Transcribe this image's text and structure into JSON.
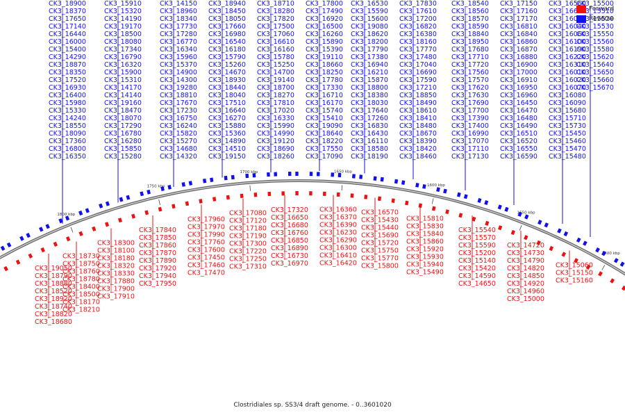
{
  "legend": {
    "forward": {
      "label": "Forward",
      "color": "#ee1111"
    },
    "reverse": {
      "label": "Reverse",
      "color": "#1111ee"
    }
  },
  "caption": "Clostridiales sp. SS3/4 draft genome. - 0..3601020",
  "ruler_ticks": [
    "1400 kbp",
    "1450 kbp",
    "1500 kbp",
    "1550 kbp",
    "1600 kbp",
    "1650 kbp",
    "1700 kbp",
    "1750 kbp",
    "1800 kbp",
    "1850 kbp",
    "1900 kbp",
    "1950 kbp"
  ],
  "reverse_genes": [
    "CK3_18900",
    "CK3_18370",
    "CK3_17650",
    "CK3_17140",
    "CK3_16440",
    "CK3_16000",
    "CK3_15400",
    "CK3_14290",
    "CK3_18870",
    "CK3_18350",
    "CK3_17520",
    "CK3_16930",
    "CK3_16400",
    "CK3_15980",
    "CK3_15330",
    "CK3_14240",
    "CK3_18550",
    "CK3_18090",
    "CK3_17360",
    "CK3_16800",
    "CK3_16350",
    "CK3_15910",
    "CK3_15320",
    "CK3_14190",
    "CK3_19170",
    "CK3_18500",
    "CK3_18080",
    "CK3_17340",
    "CK3_16790",
    "CK3_16320",
    "CK3_15900",
    "CK3_15310",
    "CK3_14170",
    "CK3_14140",
    "CK3_19160",
    "CK3_18470",
    "CK3_18070",
    "CK3_17290",
    "CK3_16780",
    "CK3_16280",
    "CK3_15850",
    "CK3_15280",
    "CK3_14150",
    "CK3_18960",
    "CK3_18340",
    "CK3_17730",
    "CK3_17280",
    "CK3_16770",
    "CK3_16340",
    "CK3_15960",
    "CK3_15370",
    "CK3_14900",
    "CK3_14300",
    "CK3_19280",
    "CK3_18810",
    "CK3_17670",
    "CK3_17230",
    "CK3_16750",
    "CK3_16240",
    "CK3_15820",
    "CK3_15270",
    "CK3_14680",
    "CK3_14320",
    "CK3_18940",
    "CK3_18450",
    "CK3_18050",
    "CK3_17660",
    "CK3_16980",
    "CK3_16540",
    "CK3_16180",
    "CK3_15790",
    "CK3_15260",
    "CK3_14670",
    "CK3_18930",
    "CK3_18440",
    "CK3_18040",
    "CK3_17510",
    "CK3_16640",
    "CK3_16270",
    "CK3_15880",
    "CK3_15360",
    "CK3_14890",
    "CK3_14510",
    "CK3_19150",
    "CK3_18710",
    "CK3_18280",
    "CK3_17820",
    "CK3_17500",
    "CK3_17060",
    "CK3_16610",
    "CK3_16160",
    "CK3_15780",
    "CK3_15250",
    "CK3_14700",
    "CK3_19140",
    "CK3_18700",
    "CK3_18270",
    "CK3_17810",
    "CK3_17020",
    "CK3_16330",
    "CK3_15990",
    "CK3_14990",
    "CK3_19120",
    "CK3_18690",
    "CK3_18260",
    "CK3_17800",
    "CK3_17490",
    "CK3_16920",
    "CK3_16500",
    "CK3_16260",
    "CK3_15890",
    "CK3_15390",
    "CK3_19110",
    "CK3_18660",
    "CK3_18250",
    "CK3_17780",
    "CK3_17330",
    "CK3_16710",
    "CK3_16170",
    "CK3_15740",
    "CK3_15410",
    "CK3_19090",
    "CK3_18640",
    "CK3_18220",
    "CK3_17550",
    "CK3_17090",
    "CK3_16530",
    "CK3_15590",
    "CK3_15600",
    "CK3_19080",
    "CK3_18620",
    "CK3_18200",
    "CK3_17790",
    "CK3_17380",
    "CK3_16940",
    "CK3_16210",
    "CK3_15870",
    "CK3_18800",
    "CK3_18380",
    "CK3_18030",
    "CK3_17640",
    "CK3_17260",
    "CK3_16830",
    "CK3_16430",
    "CK3_16110",
    "CK3_18580",
    "CK3_18190",
    "CK3_17830",
    "CK3_17610",
    "CK3_17200",
    "CK3_16820",
    "CK3_16380",
    "CK3_18160",
    "CK3_17770",
    "CK3_17480",
    "CK3_17040",
    "CK3_16690",
    "CK3_17590",
    "CK3_17210",
    "CK3_18850",
    "CK3_18490",
    "CK3_18610",
    "CK3_18410",
    "CK3_18480",
    "CK3_18670",
    "CK3_18390",
    "CK3_18420",
    "CK3_18460",
    "CK3_18540",
    "CK3_18560",
    "CK3_18570",
    "CK3_18590",
    "CK3_18840",
    "CK3_18950",
    "CK3_17680",
    "CK3_17710",
    "CK3_17720",
    "CK3_17560",
    "CK3_17570",
    "CK3_17620",
    "CK3_17630",
    "CK3_17690",
    "CK3_17700",
    "CK3_17390",
    "CK3_17400",
    "CK3_16990",
    "CK3_17070",
    "CK3_17110",
    "CK3_17130",
    "CK3_17150",
    "CK3_17160",
    "CK3_17170",
    "CK3_16810",
    "CK3_16840",
    "CK3_16860",
    "CK3_16870",
    "CK3_16880",
    "CK3_16900",
    "CK3_17000",
    "CK3_16910",
    "CK3_16950",
    "CK3_16960",
    "CK3_16450",
    "CK3_16470",
    "CK3_16480",
    "CK3_16490",
    "CK3_16510",
    "CK3_16520",
    "CK3_16550",
    "CK3_16590",
    "CK3_16560",
    "CK3_16600",
    "CK3_16030",
    "CK3_16040",
    "CK3_16060",
    "CK3_16100",
    "CK3_16190",
    "CK3_16220",
    "CK3_16310",
    "CK3_16010",
    "CK3_16020",
    "CK3_16070",
    "CK3_16080",
    "CK3_16090",
    "CK3_15680",
    "CK3_15710",
    "CK3_15730",
    "CK3_15450",
    "CK3_15460",
    "CK3_15470",
    "CK3_15480",
    "CK3_15500",
    "CK3_15510",
    "CK3_15520",
    "CK3_15530",
    "CK3_15550",
    "CK3_15560",
    "CK3_15580",
    "CK3_15620",
    "CK3_15640",
    "CK3_15650",
    "CK3_15660",
    "CK3_15670"
  ],
  "forward_genes": [
    "CK3_19050",
    "CK3_18790",
    "CK3_18880",
    "CK3_18520",
    "CK3_18920",
    "CK3_18740",
    "CK3_18820",
    "CK3_18680",
    "CK3_18730",
    "CK3_18750",
    "CK3_18760",
    "CK3_18780",
    "CK3_18400",
    "CK3_18500",
    "CK3_18170",
    "CK3_18210",
    "CK3_18300",
    "CK3_18100",
    "CK3_18180",
    "CK3_18320",
    "CK3_18330",
    "CK3_17880",
    "CK3_17900",
    "CK3_17910",
    "CK3_17840",
    "CK3_17850",
    "CK3_17860",
    "CK3_17870",
    "CK3_17890",
    "CK3_17920",
    "CK3_17940",
    "CK3_17950",
    "CK3_17960",
    "CK3_17970",
    "CK3_17990",
    "CK3_17760",
    "CK3_17600",
    "CK3_17450",
    "CK3_17460",
    "CK3_17470",
    "CK3_17080",
    "CK3_17120",
    "CK3_17180",
    "CK3_17190",
    "CK3_17300",
    "CK3_17220",
    "CK3_17250",
    "CK3_17310",
    "CK3_17320",
    "CK3_16650",
    "CK3_16680",
    "CK3_16760",
    "CK3_16850",
    "CK3_16890",
    "CK3_16730",
    "CK3_16970",
    "CK3_16360",
    "CK3_16370",
    "CK3_16390",
    "CK3_16230",
    "CK3_16290",
    "CK3_16300",
    "CK3_16410",
    "CK3_16420",
    "CK3_16570",
    "CK3_15430",
    "CK3_15440",
    "CK3_15690",
    "CK3_15720",
    "CK3_15750",
    "CK3_15770",
    "CK3_15800",
    "CK3_15810",
    "CK3_15830",
    "CK3_15840",
    "CK3_15860",
    "CK3_15920",
    "CK3_15930",
    "CK3_15940",
    "CK3_15490",
    "CK3_15540",
    "CK3_15570",
    "CK3_15590",
    "CK3_15200",
    "CK3_15140",
    "CK3_15420",
    "CK3_14590",
    "CK3_14650",
    "CK3_14720",
    "CK3_14730",
    "CK3_14790",
    "CK3_14820",
    "CK3_14850",
    "CK3_14920",
    "CK3_14960",
    "CK3_15000",
    "CK3_15060",
    "CK3_15150",
    "CK3_15160"
  ]
}
